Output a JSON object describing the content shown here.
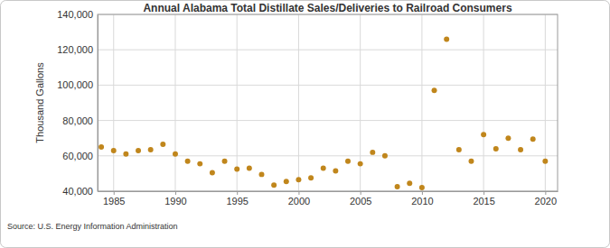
{
  "chart_data": {
    "type": "scatter",
    "title": "Annual Alabama Total Distillate Sales/Deliveries to Railroad Consumers",
    "y_label": "Thousand Gallons",
    "annotations": [
      "Source: U.S. Energy Information Administration"
    ],
    "x": [
      1984,
      1985,
      1986,
      1987,
      1988,
      1989,
      1990,
      1991,
      1992,
      1993,
      1994,
      1995,
      1996,
      1997,
      1998,
      1999,
      2000,
      2001,
      2002,
      2003,
      2004,
      2005,
      2006,
      2007,
      2008,
      2009,
      2010,
      2011,
      2012,
      2013,
      2014,
      2015,
      2016,
      2017,
      2018,
      2019,
      2020
    ],
    "values": [
      65000,
      63000,
      61000,
      63000,
      63500,
      66500,
      61000,
      57000,
      55500,
      50500,
      57000,
      52500,
      53000,
      49500,
      43500,
      45500,
      46500,
      47500,
      53000,
      51500,
      57000,
      55500,
      62000,
      60000,
      42500,
      44500,
      42000,
      97000,
      126000,
      63500,
      57000,
      72000,
      64000,
      70000,
      63500,
      69500,
      57000
    ],
    "color": "#c0861c",
    "marker": "circle",
    "xlim": [
      1983.7,
      2021
    ],
    "xticks": [
      1985,
      1990,
      1995,
      2000,
      2005,
      2010,
      2015,
      2020
    ],
    "ylim": [
      40000,
      140000
    ],
    "yticks": [
      {
        "value": 40000,
        "label": "40,000"
      },
      {
        "value": 60000,
        "label": "60,000"
      },
      {
        "value": 80000,
        "label": "80,000"
      },
      {
        "value": 100000,
        "label": "100,000"
      },
      {
        "value": 120000,
        "label": "120,000"
      },
      {
        "value": 140000,
        "label": "140,000"
      }
    ],
    "grid": true
  }
}
